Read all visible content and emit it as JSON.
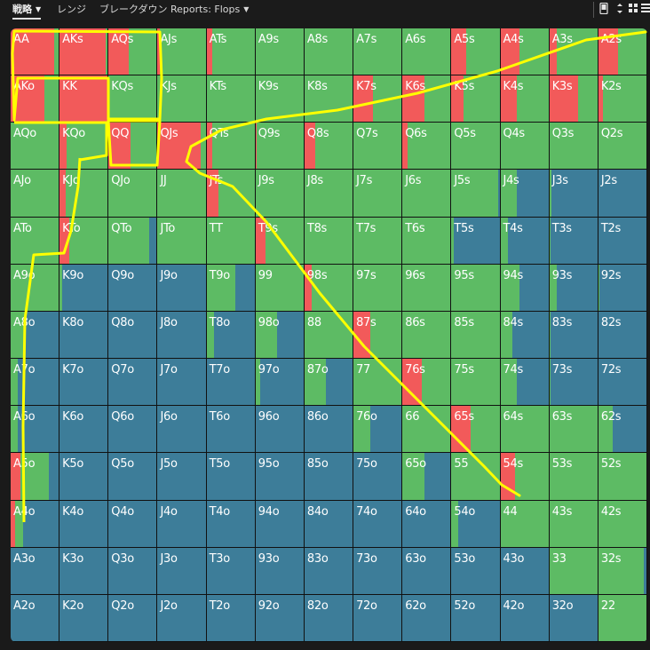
{
  "toolbar": {
    "tabs": [
      {
        "label": "戦略",
        "has_dropdown": true,
        "active": true
      },
      {
        "label": "レンジ",
        "has_dropdown": false,
        "active": false
      },
      {
        "label": "ブレークダウン",
        "has_dropdown": false,
        "active": false
      },
      {
        "label": "Reports: Flops",
        "has_dropdown": true,
        "active": false
      }
    ],
    "icons": [
      "phone-icon",
      "compress-icon",
      "grid-icon",
      "list-icon"
    ]
  },
  "colors": {
    "raise": "#f25a5a",
    "call": "#5dbb64",
    "fold": "#3d7d99",
    "annotation": "#ffff00",
    "grid_background": "#111111"
  },
  "legend_order": [
    "raise",
    "call",
    "fold"
  ],
  "matrix": {
    "rows": [
      [
        [
          "AA",
          0.9,
          0.1,
          0
        ],
        [
          "AKs",
          0.95,
          0.05,
          0
        ],
        [
          "AQs",
          0.42,
          0.58,
          0
        ],
        [
          "AJs",
          0.04,
          0.96,
          0
        ],
        [
          "ATs",
          0.12,
          0.88,
          0
        ],
        [
          "A9s",
          0,
          1,
          0
        ],
        [
          "A8s",
          0,
          1,
          0
        ],
        [
          "A7s",
          0,
          1,
          0
        ],
        [
          "A6s",
          0,
          1,
          0
        ],
        [
          "A5s",
          0.3,
          0.7,
          0
        ],
        [
          "A4s",
          0.4,
          0.6,
          0
        ],
        [
          "A3s",
          0.15,
          0.85,
          0
        ],
        [
          "A2s",
          0.4,
          0.6,
          0
        ]
      ],
      [
        [
          "AKo",
          0.7,
          0.3,
          0
        ],
        [
          "KK",
          1,
          0,
          0
        ],
        [
          "KQs",
          0,
          1,
          0
        ],
        [
          "KJs",
          0,
          1,
          0
        ],
        [
          "KTs",
          0,
          1,
          0
        ],
        [
          "K9s",
          0,
          1,
          0
        ],
        [
          "K8s",
          0,
          1,
          0
        ],
        [
          "K7s",
          0.4,
          0.6,
          0
        ],
        [
          "K6s",
          0.45,
          0.55,
          0
        ],
        [
          "K5s",
          0.25,
          0.75,
          0
        ],
        [
          "K4s",
          0.35,
          0.65,
          0
        ],
        [
          "K3s",
          0.6,
          0.4,
          0
        ],
        [
          "K2s",
          0.1,
          0.9,
          0
        ]
      ],
      [
        [
          "AQo",
          0,
          1,
          0
        ],
        [
          "KQo",
          0.15,
          0.85,
          0
        ],
        [
          "QQ",
          0.45,
          0.55,
          0
        ],
        [
          "QJs",
          0.9,
          0.1,
          0
        ],
        [
          "QTs",
          0.12,
          0.88,
          0
        ],
        [
          "Q9s",
          0.03,
          0.97,
          0
        ],
        [
          "Q8s",
          0.23,
          0.77,
          0
        ],
        [
          "Q7s",
          0,
          1,
          0
        ],
        [
          "Q6s",
          0.1,
          0.9,
          0
        ],
        [
          "Q5s",
          0,
          1,
          0
        ],
        [
          "Q4s",
          0,
          1,
          0
        ],
        [
          "Q3s",
          0,
          1,
          0
        ],
        [
          "Q2s",
          0,
          1,
          0
        ]
      ],
      [
        [
          "AJo",
          0,
          1,
          0
        ],
        [
          "KJo",
          0.13,
          0.87,
          0
        ],
        [
          "QJo",
          0,
          1,
          0
        ],
        [
          "JJ",
          0,
          1,
          0
        ],
        [
          "JTs",
          0.25,
          0.75,
          0
        ],
        [
          "J9s",
          0,
          1,
          0
        ],
        [
          "J8s",
          0,
          1,
          0
        ],
        [
          "J7s",
          0,
          1,
          0
        ],
        [
          "J6s",
          0,
          1,
          0
        ],
        [
          "J5s",
          0,
          0.98,
          0.02
        ],
        [
          "J4s",
          0,
          0.35,
          0.65
        ],
        [
          "J3s",
          0,
          0.05,
          0.95
        ],
        [
          "J2s",
          0,
          0,
          1
        ]
      ],
      [
        [
          "ATo",
          0,
          1,
          0
        ],
        [
          "KTo",
          0.2,
          0.8,
          0
        ],
        [
          "QTo",
          0,
          0.85,
          0.15
        ],
        [
          "JTo",
          0,
          1,
          0
        ],
        [
          "TT",
          0,
          1,
          0
        ],
        [
          "T9s",
          0.2,
          0.8,
          0
        ],
        [
          "T8s",
          0,
          1,
          0
        ],
        [
          "T7s",
          0,
          1,
          0
        ],
        [
          "T6s",
          0,
          1,
          0
        ],
        [
          "T5s",
          0,
          0.05,
          0.95
        ],
        [
          "T4s",
          0,
          0.15,
          0.85
        ],
        [
          "T3s",
          0,
          0.02,
          0.98
        ],
        [
          "T2s",
          0,
          0,
          1
        ]
      ],
      [
        [
          "A9o",
          0,
          1,
          0
        ],
        [
          "K9o",
          0,
          0.05,
          0.95
        ],
        [
          "Q9o",
          0,
          0,
          1
        ],
        [
          "J9o",
          0,
          0,
          1
        ],
        [
          "T9o",
          0,
          0.6,
          0.4
        ],
        [
          "99",
          0,
          1,
          0
        ],
        [
          "98s",
          0.15,
          0.85,
          0
        ],
        [
          "97s",
          0,
          1,
          0
        ],
        [
          "96s",
          0,
          1,
          0
        ],
        [
          "95s",
          0,
          1,
          0
        ],
        [
          "94s",
          0,
          0.4,
          0.6
        ],
        [
          "93s",
          0,
          0.15,
          0.85
        ],
        [
          "92s",
          0,
          0.02,
          0.98
        ]
      ],
      [
        [
          "A8o",
          0,
          0.3,
          0.7
        ],
        [
          "K8o",
          0,
          0,
          1
        ],
        [
          "Q8o",
          0,
          0,
          1
        ],
        [
          "J8o",
          0,
          0,
          1
        ],
        [
          "T8o",
          0,
          0.15,
          0.85
        ],
        [
          "98o",
          0,
          0.45,
          0.55
        ],
        [
          "88",
          0,
          1,
          0
        ],
        [
          "87s",
          0.35,
          0.65,
          0
        ],
        [
          "86s",
          0,
          1,
          0
        ],
        [
          "85s",
          0,
          1,
          0
        ],
        [
          "84s",
          0,
          0.25,
          0.75
        ],
        [
          "83s",
          0,
          0.02,
          0.98
        ],
        [
          "82s",
          0,
          0,
          1
        ]
      ],
      [
        [
          "A7o",
          0,
          0.15,
          0.85
        ],
        [
          "K7o",
          0,
          0,
          1
        ],
        [
          "Q7o",
          0,
          0,
          1
        ],
        [
          "J7o",
          0,
          0,
          1
        ],
        [
          "T7o",
          0,
          0,
          1
        ],
        [
          "97o",
          0,
          0.1,
          0.9
        ],
        [
          "87o",
          0,
          0.45,
          0.55
        ],
        [
          "77",
          0,
          1,
          0
        ],
        [
          "76s",
          0.4,
          0.6,
          0
        ],
        [
          "75s",
          0,
          1,
          0
        ],
        [
          "74s",
          0,
          0.35,
          0.65
        ],
        [
          "73s",
          0,
          0.02,
          0.98
        ],
        [
          "72s",
          0,
          0,
          1
        ]
      ],
      [
        [
          "A6o",
          0,
          0.15,
          0.85
        ],
        [
          "K6o",
          0,
          0,
          1
        ],
        [
          "Q6o",
          0,
          0,
          1
        ],
        [
          "J6o",
          0,
          0,
          1
        ],
        [
          "T6o",
          0,
          0,
          1
        ],
        [
          "96o",
          0,
          0,
          1
        ],
        [
          "86o",
          0,
          0,
          1
        ],
        [
          "76o",
          0,
          0.35,
          0.65
        ],
        [
          "66",
          0,
          1,
          0
        ],
        [
          "65s",
          0.4,
          0.6,
          0
        ],
        [
          "64s",
          0,
          1,
          0
        ],
        [
          "63s",
          0,
          1,
          0
        ],
        [
          "62s",
          0,
          0.3,
          0.7
        ]
      ],
      [
        [
          "A5o",
          0.2,
          0.6,
          0.2
        ],
        [
          "K5o",
          0,
          0,
          1
        ],
        [
          "Q5o",
          0,
          0,
          1
        ],
        [
          "J5o",
          0,
          0,
          1
        ],
        [
          "T5o",
          0,
          0,
          1
        ],
        [
          "95o",
          0,
          0,
          1
        ],
        [
          "85o",
          0,
          0,
          1
        ],
        [
          "75o",
          0,
          0,
          1
        ],
        [
          "65o",
          0,
          0.45,
          0.55
        ],
        [
          "55",
          0,
          1,
          0
        ],
        [
          "54s",
          0.3,
          0.7,
          0
        ],
        [
          "53s",
          0,
          1,
          0
        ],
        [
          "52s",
          0,
          1,
          0
        ]
      ],
      [
        [
          "A4o",
          0.1,
          0.15,
          0.75
        ],
        [
          "K4o",
          0,
          0,
          1
        ],
        [
          "Q4o",
          0,
          0,
          1
        ],
        [
          "J4o",
          0,
          0,
          1
        ],
        [
          "T4o",
          0,
          0,
          1
        ],
        [
          "94o",
          0,
          0,
          1
        ],
        [
          "84o",
          0,
          0,
          1
        ],
        [
          "74o",
          0,
          0,
          1
        ],
        [
          "64o",
          0,
          0,
          1
        ],
        [
          "54o",
          0,
          0.15,
          0.85
        ],
        [
          "44",
          0,
          1,
          0
        ],
        [
          "43s",
          0,
          1,
          0
        ],
        [
          "42s",
          0,
          1,
          0
        ]
      ],
      [
        [
          "A3o",
          0,
          0,
          1
        ],
        [
          "K3o",
          0,
          0,
          1
        ],
        [
          "Q3o",
          0,
          0,
          1
        ],
        [
          "J3o",
          0,
          0,
          1
        ],
        [
          "T3o",
          0,
          0,
          1
        ],
        [
          "93o",
          0,
          0,
          1
        ],
        [
          "83o",
          0,
          0,
          1
        ],
        [
          "73o",
          0,
          0,
          1
        ],
        [
          "63o",
          0,
          0,
          1
        ],
        [
          "53o",
          0,
          0,
          1
        ],
        [
          "43o",
          0,
          0,
          1
        ],
        [
          "33",
          0,
          1,
          0
        ],
        [
          "32s",
          0,
          0.95,
          0.05
        ]
      ],
      [
        [
          "A2o",
          0,
          0,
          1
        ],
        [
          "K2o",
          0,
          0,
          1
        ],
        [
          "Q2o",
          0,
          0,
          1
        ],
        [
          "J2o",
          0,
          0,
          1
        ],
        [
          "T2o",
          0,
          0,
          1
        ],
        [
          "92o",
          0,
          0,
          1
        ],
        [
          "82o",
          0,
          0,
          1
        ],
        [
          "72o",
          0,
          0,
          1
        ],
        [
          "62o",
          0,
          0,
          1
        ],
        [
          "52o",
          0,
          0,
          1
        ],
        [
          "42o",
          0,
          0,
          1
        ],
        [
          "32o",
          0,
          0,
          1
        ],
        [
          "22",
          0,
          1,
          0
        ]
      ]
    ]
  }
}
